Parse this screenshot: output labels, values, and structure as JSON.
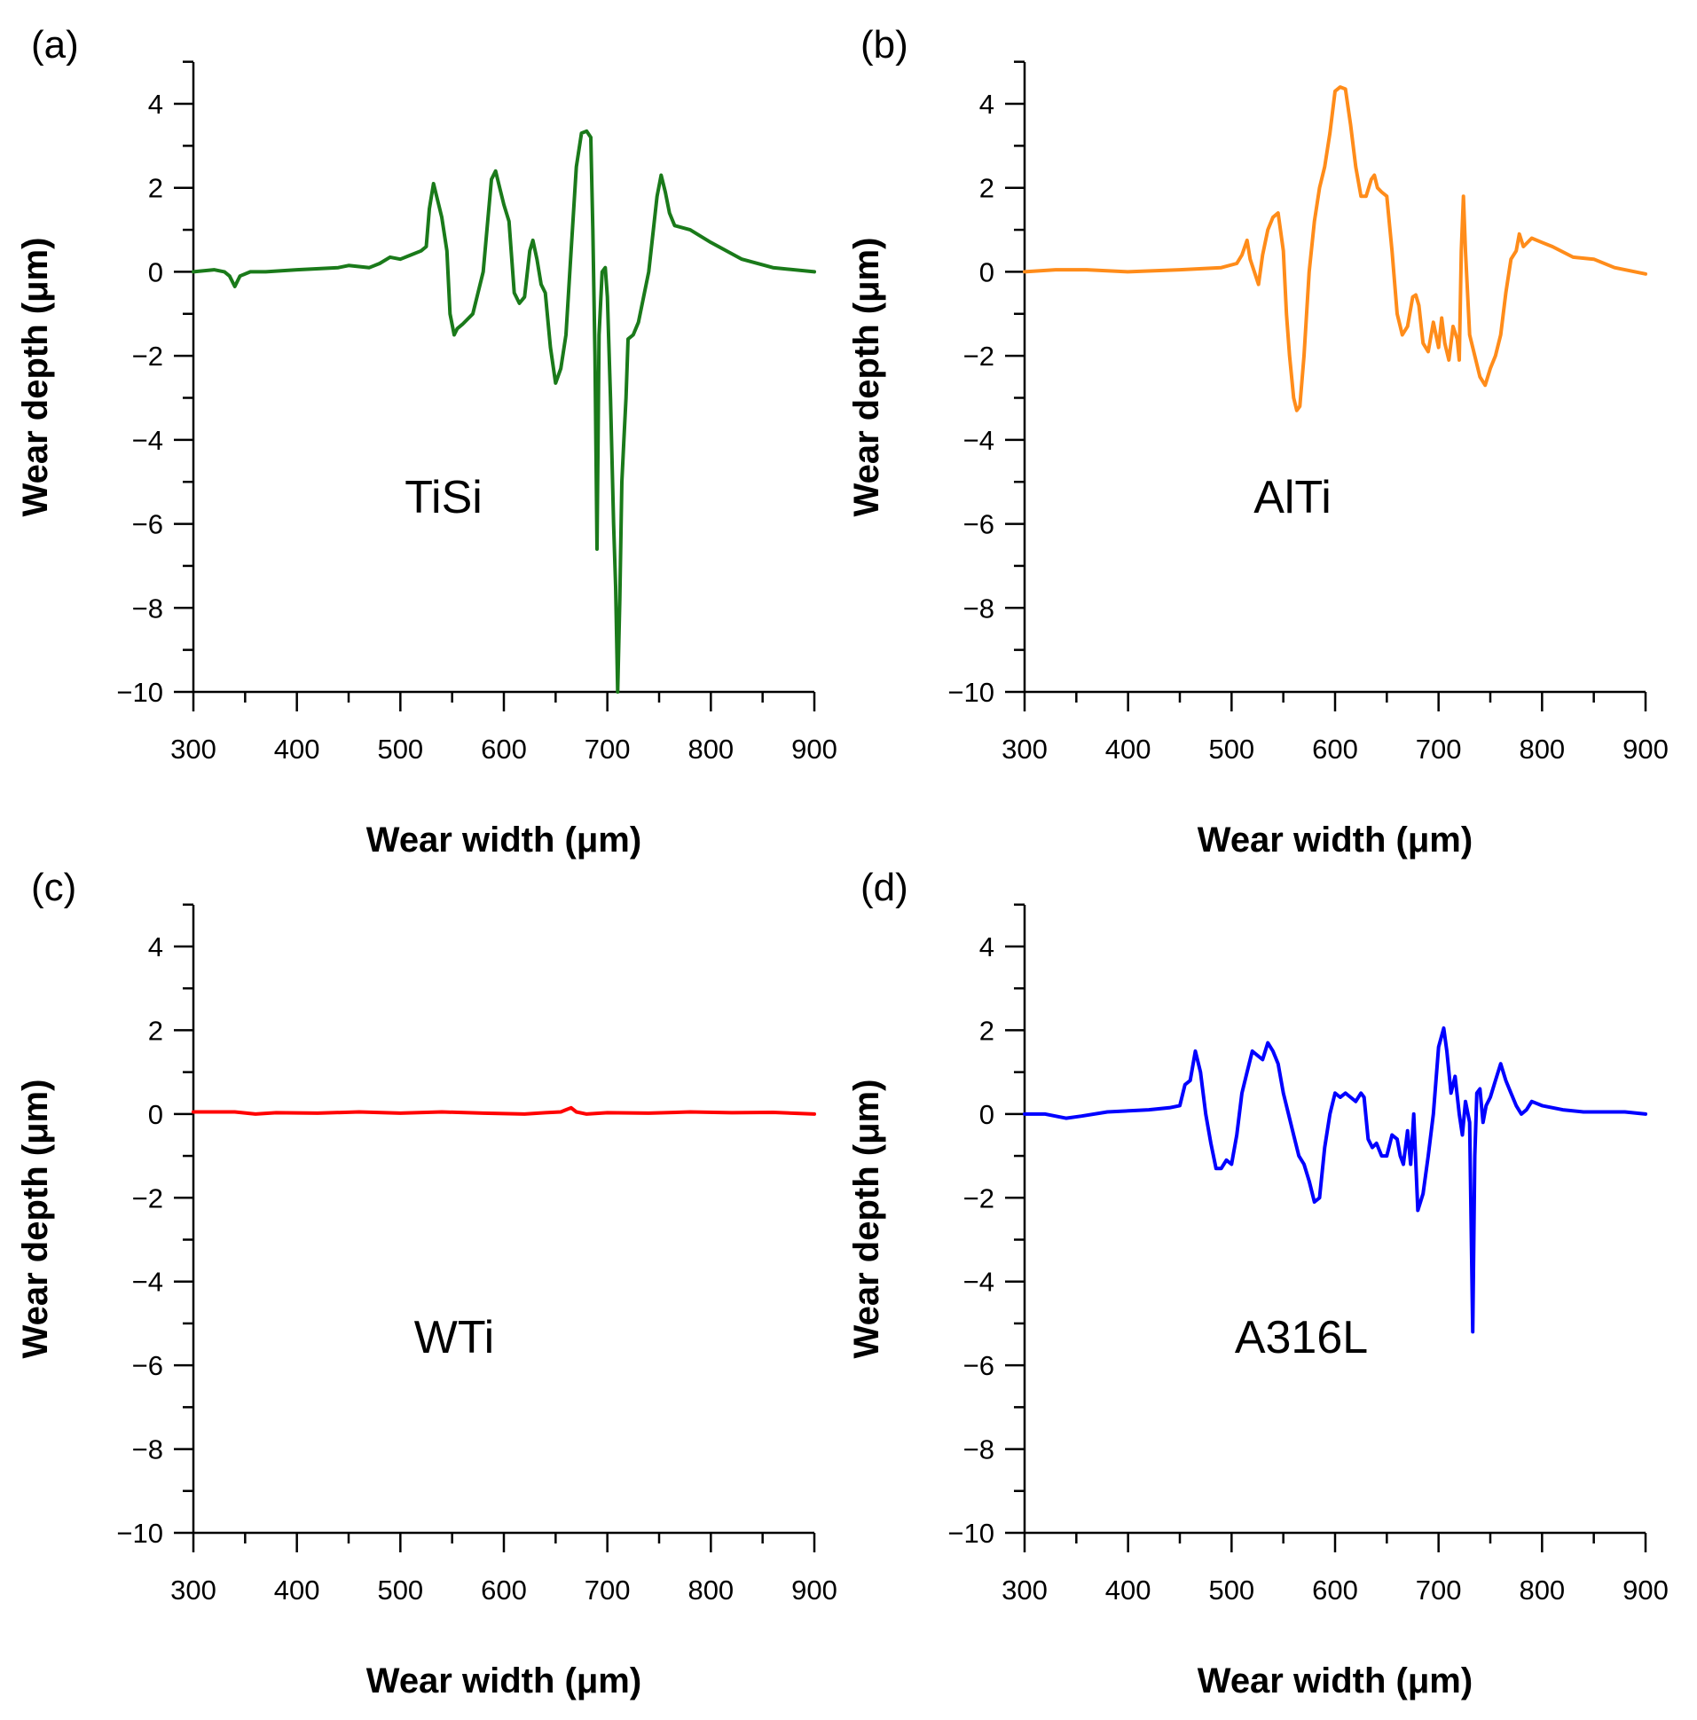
{
  "chart_data": [
    {
      "type": "line",
      "panel_label": "(a)",
      "annotation": "TiSi",
      "xlabel": "Wear width (μm)",
      "ylabel": "Wear depth (μm)",
      "xlim": [
        300,
        900
      ],
      "ylim": [
        -10,
        5
      ],
      "xticks": [
        300,
        400,
        500,
        600,
        700,
        800,
        900
      ],
      "xtick_labels": [
        "300",
        "400",
        "500",
        "600",
        "700",
        "800",
        "900"
      ],
      "yticks": [
        4,
        2,
        0,
        -2,
        -4,
        -6,
        -8,
        -10
      ],
      "ytick_labels": [
        "4",
        "2",
        "0",
        "−2",
        "−4",
        "−6",
        "−8",
        "−10"
      ],
      "grid": false,
      "series": [
        {
          "name": "TiSi",
          "color": "#1a7a1a",
          "x": [
            300,
            320,
            330,
            335,
            340,
            345,
            355,
            370,
            400,
            440,
            450,
            470,
            480,
            490,
            500,
            510,
            520,
            525,
            528,
            532,
            535,
            540,
            545,
            548,
            552,
            555,
            560,
            570,
            580,
            588,
            592,
            596,
            600,
            605,
            610,
            615,
            620,
            625,
            628,
            632,
            636,
            640,
            645,
            650,
            655,
            660,
            665,
            670,
            675,
            680,
            684,
            686,
            688,
            690,
            692,
            695,
            698,
            700,
            703,
            706,
            708,
            710,
            712,
            714,
            716,
            718,
            720,
            725,
            730,
            740,
            748,
            752,
            756,
            760,
            765,
            780,
            800,
            830,
            860,
            900
          ],
          "y": [
            0.0,
            0.05,
            0.0,
            -0.1,
            -0.35,
            -0.1,
            0.0,
            0.0,
            0.05,
            0.1,
            0.15,
            0.1,
            0.2,
            0.35,
            0.3,
            0.4,
            0.5,
            0.6,
            1.5,
            2.1,
            1.8,
            1.3,
            0.5,
            -1.0,
            -1.5,
            -1.35,
            -1.25,
            -1.0,
            0.0,
            2.2,
            2.4,
            2.0,
            1.6,
            1.2,
            -0.5,
            -0.75,
            -0.6,
            0.5,
            0.75,
            0.3,
            -0.3,
            -0.5,
            -1.8,
            -2.65,
            -2.3,
            -1.5,
            0.5,
            2.5,
            3.3,
            3.35,
            3.2,
            1.0,
            -2.0,
            -6.6,
            -1.5,
            0.0,
            0.1,
            -0.6,
            -3.0,
            -6.0,
            -7.5,
            -10.0,
            -7.8,
            -5.0,
            -4.0,
            -3.0,
            -1.6,
            -1.5,
            -1.2,
            0.0,
            1.8,
            2.3,
            1.9,
            1.4,
            1.1,
            1.0,
            0.7,
            0.3,
            0.1,
            0.0
          ]
        }
      ]
    },
    {
      "type": "line",
      "panel_label": "(b)",
      "annotation": "AlTi",
      "xlabel": "Wear width (μm)",
      "ylabel": "Wear depth (μm)",
      "xlim": [
        300,
        900
      ],
      "ylim": [
        -10,
        5
      ],
      "xticks": [
        300,
        400,
        500,
        600,
        700,
        800,
        900
      ],
      "xtick_labels": [
        "300",
        "400",
        "500",
        "600",
        "700",
        "800",
        "900"
      ],
      "yticks": [
        4,
        2,
        0,
        -2,
        -4,
        -6,
        -8,
        -10
      ],
      "ytick_labels": [
        "4",
        "2",
        "0",
        "−2",
        "−4",
        "−6",
        "−8",
        "−10"
      ],
      "grid": false,
      "series": [
        {
          "name": "AlTi",
          "color": "#ff8c1a",
          "x": [
            300,
            330,
            360,
            400,
            450,
            490,
            505,
            510,
            515,
            518,
            522,
            526,
            530,
            535,
            540,
            545,
            550,
            553,
            556,
            560,
            563,
            566,
            570,
            575,
            580,
            585,
            590,
            595,
            600,
            605,
            610,
            615,
            620,
            625,
            630,
            635,
            638,
            641,
            645,
            650,
            655,
            660,
            665,
            670,
            675,
            678,
            681,
            685,
            690,
            695,
            700,
            703,
            706,
            710,
            714,
            718,
            720,
            722,
            724,
            726,
            730,
            735,
            740,
            745,
            750,
            755,
            760,
            765,
            770,
            775,
            778,
            782,
            790,
            800,
            810,
            830,
            850,
            870,
            900
          ],
          "y": [
            0.0,
            0.05,
            0.05,
            0.0,
            0.05,
            0.1,
            0.2,
            0.4,
            0.75,
            0.3,
            0.0,
            -0.3,
            0.4,
            1.0,
            1.3,
            1.4,
            0.5,
            -1.0,
            -2.0,
            -3.0,
            -3.3,
            -3.2,
            -2.0,
            0.0,
            1.2,
            2.0,
            2.5,
            3.3,
            4.3,
            4.4,
            4.35,
            3.5,
            2.5,
            1.8,
            1.8,
            2.2,
            2.3,
            2.0,
            1.9,
            1.8,
            0.5,
            -1.0,
            -1.5,
            -1.3,
            -0.6,
            -0.55,
            -0.8,
            -1.7,
            -1.9,
            -1.2,
            -1.8,
            -1.1,
            -1.7,
            -2.1,
            -1.3,
            -1.6,
            -2.1,
            0.5,
            1.8,
            0.5,
            -1.5,
            -2.0,
            -2.5,
            -2.7,
            -2.3,
            -2.0,
            -1.5,
            -0.5,
            0.3,
            0.5,
            0.9,
            0.6,
            0.8,
            0.7,
            0.6,
            0.35,
            0.3,
            0.1,
            -0.05
          ]
        }
      ]
    },
    {
      "type": "line",
      "panel_label": "(c)",
      "annotation": "WTi",
      "xlabel": "Wear width (μm)",
      "ylabel": "Wear depth (μm)",
      "xlim": [
        300,
        900
      ],
      "ylim": [
        -10,
        5
      ],
      "xticks": [
        300,
        400,
        500,
        600,
        700,
        800,
        900
      ],
      "xtick_labels": [
        "300",
        "400",
        "500",
        "600",
        "700",
        "800",
        "900"
      ],
      "yticks": [
        4,
        2,
        0,
        -2,
        -4,
        -6,
        -8,
        -10
      ],
      "ytick_labels": [
        "4",
        "2",
        "0",
        "−2",
        "−4",
        "−6",
        "−8",
        "−10"
      ],
      "grid": false,
      "series": [
        {
          "name": "WTi",
          "color": "#ff0000",
          "x": [
            300,
            340,
            360,
            380,
            420,
            460,
            500,
            540,
            580,
            620,
            640,
            655,
            660,
            665,
            670,
            680,
            700,
            740,
            780,
            820,
            860,
            900
          ],
          "y": [
            0.05,
            0.05,
            0.0,
            0.03,
            0.02,
            0.05,
            0.02,
            0.05,
            0.02,
            0.0,
            0.03,
            0.05,
            0.1,
            0.15,
            0.05,
            0.0,
            0.03,
            0.02,
            0.05,
            0.03,
            0.04,
            0.0
          ]
        }
      ]
    },
    {
      "type": "line",
      "panel_label": "(d)",
      "annotation": "A316L",
      "xlabel": "Wear width (μm)",
      "ylabel": "Wear depth (μm)",
      "xlim": [
        300,
        900
      ],
      "ylim": [
        -10,
        5
      ],
      "xticks": [
        300,
        400,
        500,
        600,
        700,
        800,
        900
      ],
      "xtick_labels": [
        "300",
        "400",
        "500",
        "600",
        "700",
        "800",
        "900"
      ],
      "yticks": [
        4,
        2,
        0,
        -2,
        -4,
        -6,
        -8,
        -10
      ],
      "ytick_labels": [
        "4",
        "2",
        "0",
        "−2",
        "−4",
        "−6",
        "−8",
        "−10"
      ],
      "grid": false,
      "series": [
        {
          "name": "A316L",
          "color": "#0000ff",
          "x": [
            300,
            320,
            340,
            355,
            380,
            420,
            440,
            450,
            455,
            460,
            465,
            470,
            475,
            480,
            485,
            490,
            495,
            500,
            505,
            510,
            515,
            520,
            525,
            530,
            535,
            540,
            545,
            550,
            555,
            560,
            565,
            570,
            575,
            580,
            585,
            590,
            595,
            600,
            605,
            610,
            615,
            620,
            625,
            628,
            632,
            636,
            640,
            645,
            650,
            655,
            660,
            663,
            666,
            670,
            673,
            676,
            680,
            685,
            690,
            695,
            700,
            705,
            708,
            712,
            716,
            720,
            723,
            726,
            730,
            733,
            735,
            737,
            740,
            743,
            746,
            750,
            755,
            760,
            765,
            770,
            775,
            780,
            785,
            790,
            800,
            820,
            840,
            860,
            880,
            900
          ],
          "y": [
            0.0,
            0.0,
            -0.1,
            -0.05,
            0.05,
            0.1,
            0.15,
            0.2,
            0.7,
            0.8,
            1.5,
            1.0,
            0.0,
            -0.7,
            -1.3,
            -1.3,
            -1.1,
            -1.2,
            -0.5,
            0.5,
            1.0,
            1.5,
            1.4,
            1.3,
            1.7,
            1.5,
            1.2,
            0.5,
            0.0,
            -0.5,
            -1.0,
            -1.2,
            -1.6,
            -2.1,
            -2.0,
            -0.8,
            0.0,
            0.5,
            0.4,
            0.5,
            0.4,
            0.3,
            0.5,
            0.4,
            -0.6,
            -0.8,
            -0.7,
            -1.0,
            -1.0,
            -0.5,
            -0.6,
            -1.0,
            -1.2,
            -0.4,
            -1.2,
            0.0,
            -2.3,
            -1.9,
            -1.0,
            0.0,
            1.6,
            2.05,
            1.5,
            0.5,
            0.9,
            0.0,
            -0.5,
            0.3,
            -0.2,
            -5.2,
            -1.0,
            0.5,
            0.6,
            -0.2,
            0.2,
            0.4,
            0.8,
            1.2,
            0.8,
            0.5,
            0.2,
            0.0,
            0.1,
            0.3,
            0.2,
            0.1,
            0.05,
            0.05,
            0.05,
            0.0
          ]
        }
      ]
    }
  ]
}
